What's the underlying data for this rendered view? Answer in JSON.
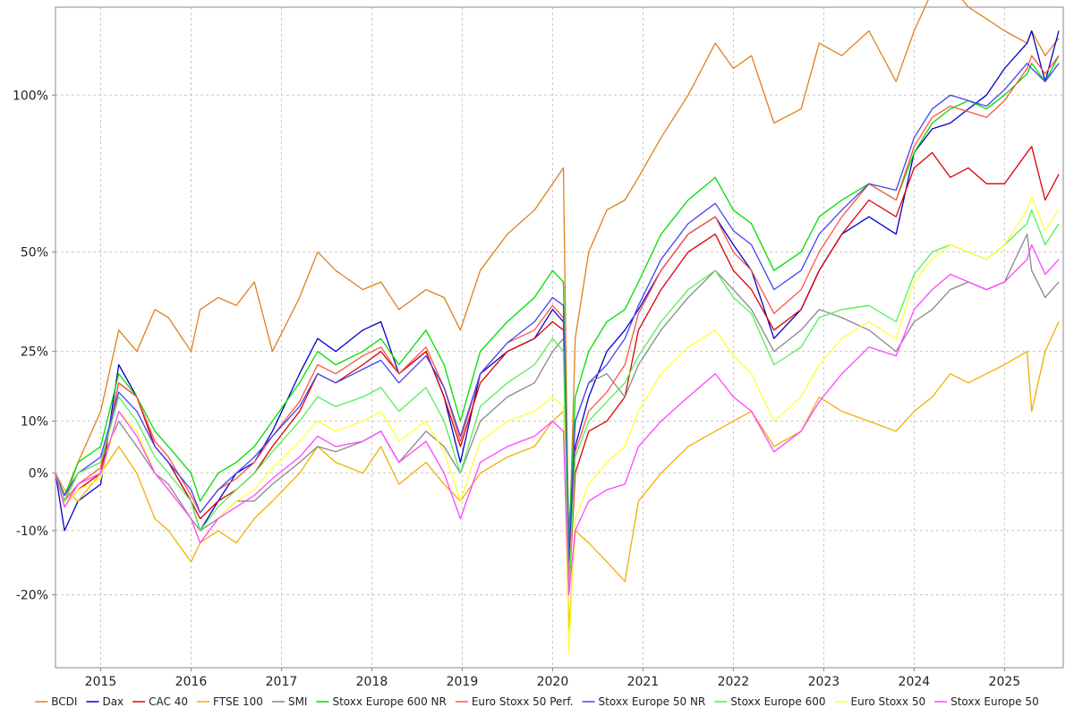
{
  "chart_data": {
    "type": "line",
    "title": "",
    "xlabel": "",
    "ylabel": "",
    "y_scale": "log(1+r)",
    "xlim": [
      2014.5,
      2025.65
    ],
    "ylim": [
      -0.3,
      1.35
    ],
    "grid": true,
    "legend_position": "bottom",
    "x_ticks": [
      {
        "value": 2015,
        "label": "2015"
      },
      {
        "value": 2016,
        "label": "2016"
      },
      {
        "value": 2017,
        "label": "2017"
      },
      {
        "value": 2018,
        "label": "2018"
      },
      {
        "value": 2019,
        "label": "2019"
      },
      {
        "value": 2020,
        "label": "2020"
      },
      {
        "value": 2021,
        "label": "2021"
      },
      {
        "value": 2022,
        "label": "2022"
      },
      {
        "value": 2023,
        "label": "2023"
      },
      {
        "value": 2024,
        "label": "2024"
      },
      {
        "value": 2025,
        "label": "2025"
      }
    ],
    "y_ticks": [
      {
        "value": -0.2,
        "label": "-20%"
      },
      {
        "value": -0.1,
        "label": "-10%"
      },
      {
        "value": 0.0,
        "label": "0%"
      },
      {
        "value": 0.1,
        "label": "10%"
      },
      {
        "value": 0.25,
        "label": "25%"
      },
      {
        "value": 0.5,
        "label": "50%"
      },
      {
        "value": 1.0,
        "label": "100%"
      }
    ],
    "x": [
      2014.5,
      2014.6,
      2014.75,
      2015.0,
      2015.2,
      2015.4,
      2015.6,
      2015.75,
      2016.0,
      2016.1,
      2016.3,
      2016.5,
      2016.7,
      2016.9,
      2017.2,
      2017.4,
      2017.6,
      2017.9,
      2018.1,
      2018.3,
      2018.6,
      2018.8,
      2018.98,
      2019.2,
      2019.5,
      2019.8,
      2020.0,
      2020.12,
      2020.18,
      2020.25,
      2020.4,
      2020.6,
      2020.8,
      2020.95,
      2021.2,
      2021.5,
      2021.8,
      2022.0,
      2022.2,
      2022.45,
      2022.75,
      2022.95,
      2023.2,
      2023.5,
      2023.8,
      2024.0,
      2024.2,
      2024.4,
      2024.6,
      2024.8,
      2025.0,
      2025.25,
      2025.3,
      2025.45,
      2025.6
    ],
    "series": [
      {
        "name": "BCDI",
        "color": "#e0801a",
        "values": [
          0.0,
          -0.05,
          0.02,
          0.12,
          0.3,
          0.25,
          0.35,
          0.33,
          0.25,
          0.35,
          0.38,
          0.36,
          0.42,
          0.25,
          0.38,
          0.5,
          0.45,
          0.4,
          0.42,
          0.35,
          0.4,
          0.38,
          0.3,
          0.45,
          0.55,
          0.62,
          0.7,
          0.75,
          -0.15,
          0.28,
          0.5,
          0.62,
          0.65,
          0.72,
          0.85,
          1.0,
          1.2,
          1.1,
          1.15,
          0.9,
          0.95,
          1.2,
          1.15,
          1.25,
          1.05,
          1.25,
          1.42,
          1.45,
          1.35,
          1.3,
          1.25,
          1.2,
          1.25,
          1.15,
          1.22
        ]
      },
      {
        "name": "Dax",
        "color": "#0000cc",
        "values": [
          0.0,
          -0.1,
          -0.05,
          -0.02,
          0.22,
          0.15,
          0.05,
          0.02,
          -0.05,
          -0.1,
          -0.05,
          0.0,
          0.02,
          0.08,
          0.2,
          0.28,
          0.25,
          0.3,
          0.32,
          0.2,
          0.25,
          0.15,
          0.02,
          0.2,
          0.25,
          0.28,
          0.35,
          0.32,
          -0.15,
          0.05,
          0.15,
          0.25,
          0.3,
          0.35,
          0.45,
          0.55,
          0.6,
          0.52,
          0.45,
          0.28,
          0.35,
          0.45,
          0.55,
          0.6,
          0.55,
          0.8,
          0.88,
          0.9,
          0.95,
          1.0,
          1.1,
          1.2,
          1.25,
          1.05,
          1.25
        ]
      },
      {
        "name": "CAC 40",
        "color": "#dd0000",
        "values": [
          0.0,
          -0.06,
          -0.03,
          0.0,
          0.18,
          0.15,
          0.05,
          0.02,
          -0.05,
          -0.08,
          -0.05,
          -0.03,
          0.0,
          0.05,
          0.12,
          0.2,
          0.18,
          0.22,
          0.25,
          0.2,
          0.25,
          0.15,
          0.05,
          0.18,
          0.25,
          0.28,
          0.32,
          0.3,
          -0.2,
          0.0,
          0.08,
          0.1,
          0.15,
          0.3,
          0.4,
          0.5,
          0.55,
          0.45,
          0.4,
          0.3,
          0.35,
          0.45,
          0.55,
          0.65,
          0.6,
          0.75,
          0.8,
          0.72,
          0.75,
          0.7,
          0.7,
          0.8,
          0.82,
          0.65,
          0.73
        ]
      },
      {
        "name": "FTSE 100",
        "color": "#f0b000",
        "values": [
          0.0,
          -0.03,
          -0.05,
          0.0,
          0.05,
          0.0,
          -0.08,
          -0.1,
          -0.15,
          -0.12,
          -0.1,
          -0.12,
          -0.08,
          -0.05,
          0.0,
          0.05,
          0.02,
          0.0,
          0.05,
          -0.02,
          0.02,
          -0.02,
          -0.05,
          0.0,
          0.03,
          0.05,
          0.1,
          0.12,
          -0.25,
          -0.1,
          -0.12,
          -0.15,
          -0.18,
          -0.05,
          0.0,
          0.05,
          0.08,
          0.1,
          0.12,
          0.05,
          0.08,
          0.15,
          0.12,
          0.1,
          0.08,
          0.12,
          0.15,
          0.2,
          0.18,
          0.2,
          0.22,
          0.25,
          0.12,
          0.25,
          0.32
        ]
      },
      {
        "name": "SMI",
        "color": "#888888",
        "values": [
          0.0,
          -0.05,
          0.0,
          0.02,
          0.1,
          0.05,
          0.0,
          -0.02,
          -0.08,
          -0.1,
          -0.08,
          -0.05,
          -0.05,
          -0.02,
          0.02,
          0.05,
          0.04,
          0.06,
          0.08,
          0.02,
          0.08,
          0.05,
          0.0,
          0.1,
          0.15,
          0.18,
          0.25,
          0.28,
          -0.1,
          0.1,
          0.18,
          0.2,
          0.15,
          0.22,
          0.3,
          0.38,
          0.45,
          0.4,
          0.35,
          0.25,
          0.3,
          0.35,
          0.33,
          0.3,
          0.25,
          0.32,
          0.35,
          0.4,
          0.42,
          0.4,
          0.42,
          0.55,
          0.45,
          0.38,
          0.42
        ]
      },
      {
        "name": "Stoxx Europe 600 NR",
        "color": "#00dd00",
        "values": [
          0.0,
          -0.04,
          0.02,
          0.05,
          0.2,
          0.15,
          0.08,
          0.05,
          0.0,
          -0.05,
          0.0,
          0.02,
          0.05,
          0.1,
          0.18,
          0.25,
          0.22,
          0.25,
          0.28,
          0.22,
          0.3,
          0.22,
          0.1,
          0.25,
          0.32,
          0.38,
          0.45,
          0.42,
          -0.12,
          0.15,
          0.25,
          0.32,
          0.35,
          0.42,
          0.55,
          0.65,
          0.72,
          0.62,
          0.58,
          0.45,
          0.5,
          0.6,
          0.65,
          0.7,
          0.65,
          0.8,
          0.9,
          0.95,
          0.98,
          0.95,
          1.0,
          1.08,
          1.12,
          1.05,
          1.15
        ]
      },
      {
        "name": "Euro Stoxx 50 Perf.",
        "color": "#ff5544",
        "values": [
          0.0,
          -0.05,
          -0.02,
          0.01,
          0.18,
          0.15,
          0.06,
          0.03,
          -0.04,
          -0.07,
          -0.03,
          -0.01,
          0.02,
          0.07,
          0.14,
          0.22,
          0.2,
          0.24,
          0.26,
          0.2,
          0.26,
          0.17,
          0.06,
          0.2,
          0.27,
          0.3,
          0.36,
          0.33,
          -0.18,
          0.04,
          0.12,
          0.16,
          0.22,
          0.34,
          0.45,
          0.55,
          0.6,
          0.5,
          0.45,
          0.34,
          0.4,
          0.5,
          0.6,
          0.7,
          0.65,
          0.82,
          0.92,
          0.96,
          0.94,
          0.92,
          0.98,
          1.1,
          1.15,
          1.08,
          1.15
        ]
      },
      {
        "name": "Stoxx Europe 50 NR",
        "color": "#4444ee",
        "values": [
          0.0,
          -0.04,
          0.0,
          0.03,
          0.16,
          0.12,
          0.05,
          0.02,
          -0.03,
          -0.07,
          -0.03,
          0.0,
          0.03,
          0.07,
          0.13,
          0.2,
          0.18,
          0.21,
          0.23,
          0.18,
          0.24,
          0.17,
          0.07,
          0.2,
          0.27,
          0.32,
          0.38,
          0.36,
          -0.14,
          0.1,
          0.18,
          0.22,
          0.28,
          0.36,
          0.48,
          0.58,
          0.64,
          0.56,
          0.52,
          0.4,
          0.45,
          0.55,
          0.62,
          0.7,
          0.68,
          0.85,
          0.95,
          1.0,
          0.98,
          0.96,
          1.02,
          1.12,
          1.1,
          1.05,
          1.12
        ]
      },
      {
        "name": "Stoxx Europe 600",
        "color": "#55ee55",
        "values": [
          0.0,
          -0.05,
          0.0,
          0.02,
          0.15,
          0.1,
          0.03,
          0.0,
          -0.05,
          -0.1,
          -0.06,
          -0.03,
          0.0,
          0.04,
          0.1,
          0.15,
          0.13,
          0.15,
          0.17,
          0.12,
          0.17,
          0.1,
          0.0,
          0.13,
          0.18,
          0.22,
          0.28,
          0.25,
          -0.2,
          0.03,
          0.1,
          0.14,
          0.18,
          0.24,
          0.32,
          0.4,
          0.45,
          0.38,
          0.34,
          0.22,
          0.26,
          0.33,
          0.35,
          0.36,
          0.32,
          0.44,
          0.5,
          0.52,
          0.5,
          0.48,
          0.52,
          0.58,
          0.62,
          0.52,
          0.58
        ]
      },
      {
        "name": "Euro Stoxx 50",
        "color": "#ffff33",
        "values": [
          0.0,
          -0.06,
          -0.03,
          -0.01,
          0.12,
          0.08,
          0.0,
          -0.03,
          -0.08,
          -0.12,
          -0.08,
          -0.05,
          -0.03,
          0.01,
          0.06,
          0.1,
          0.08,
          0.1,
          0.12,
          0.06,
          0.1,
          0.04,
          -0.05,
          0.06,
          0.1,
          0.12,
          0.15,
          0.13,
          -0.28,
          -0.08,
          -0.02,
          0.02,
          0.05,
          0.12,
          0.2,
          0.26,
          0.3,
          0.24,
          0.2,
          0.1,
          0.15,
          0.22,
          0.28,
          0.32,
          0.28,
          0.42,
          0.48,
          0.52,
          0.5,
          0.48,
          0.52,
          0.62,
          0.66,
          0.56,
          0.62
        ]
      },
      {
        "name": "Stoxx Europe 50",
        "color": "#ff44ff",
        "values": [
          0.0,
          -0.06,
          -0.02,
          0.0,
          0.12,
          0.07,
          0.0,
          -0.03,
          -0.08,
          -0.12,
          -0.08,
          -0.06,
          -0.04,
          -0.01,
          0.03,
          0.07,
          0.05,
          0.06,
          0.08,
          0.02,
          0.06,
          0.0,
          -0.08,
          0.02,
          0.05,
          0.07,
          0.1,
          0.08,
          -0.2,
          -0.1,
          -0.05,
          -0.03,
          -0.02,
          0.05,
          0.1,
          0.15,
          0.2,
          0.15,
          0.12,
          0.04,
          0.08,
          0.14,
          0.2,
          0.26,
          0.24,
          0.35,
          0.4,
          0.44,
          0.42,
          0.4,
          0.42,
          0.48,
          0.52,
          0.44,
          0.48
        ]
      }
    ]
  }
}
